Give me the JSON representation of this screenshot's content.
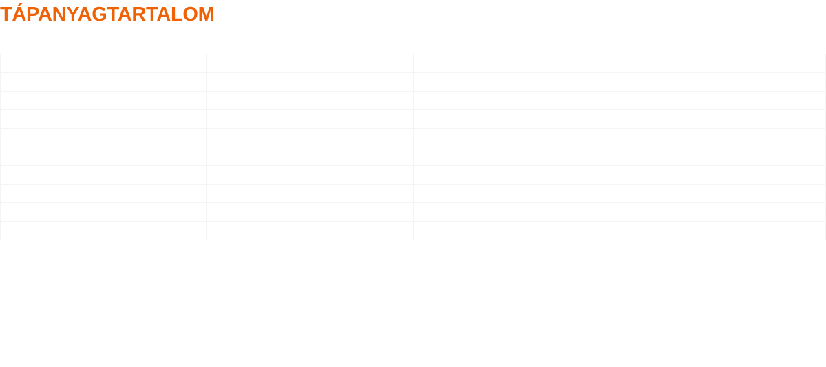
{
  "title": "TÁPANYAGTARTALOM",
  "colors": {
    "title": "#EE6205",
    "grid": "#F4F4F4"
  },
  "table": {
    "rows": [
      [
        "",
        "",
        "",
        ""
      ],
      [
        "",
        "",
        "",
        ""
      ],
      [
        "",
        "",
        "",
        ""
      ],
      [
        "",
        "",
        "",
        ""
      ],
      [
        "",
        "",
        "",
        ""
      ],
      [
        "",
        "",
        "",
        ""
      ],
      [
        "",
        "",
        "",
        ""
      ],
      [
        "",
        "",
        "",
        ""
      ],
      [
        "",
        "",
        "",
        ""
      ],
      [
        "",
        "",
        "",
        ""
      ]
    ]
  }
}
